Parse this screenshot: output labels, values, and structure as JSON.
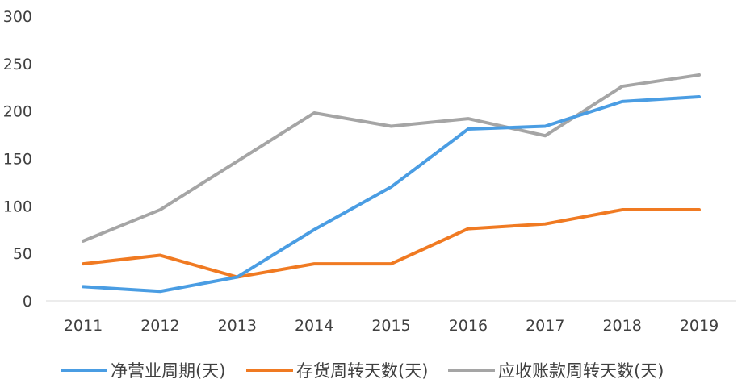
{
  "chart_data": {
    "type": "line",
    "title": "",
    "xlabel": "",
    "ylabel": "",
    "categories": [
      "2011",
      "2012",
      "2013",
      "2014",
      "2015",
      "2016",
      "2017",
      "2018",
      "2019"
    ],
    "ylim": [
      0,
      300
    ],
    "yticks": [
      0,
      50,
      100,
      150,
      200,
      250,
      300
    ],
    "grid": false,
    "legend_position": "bottom",
    "series": [
      {
        "name": "净营业周期(天)",
        "color": "#4a9de3",
        "values": [
          15,
          10,
          25,
          75,
          120,
          181,
          184,
          210,
          215
        ]
      },
      {
        "name": "存货周转天数(天)",
        "color": "#f07a22",
        "values": [
          39,
          48,
          25,
          39,
          39,
          76,
          81,
          96,
          96
        ]
      },
      {
        "name": "应收账款周转天数(天)",
        "color": "#a5a5a5",
        "values": [
          63,
          96,
          147,
          198,
          184,
          192,
          174,
          226,
          238
        ]
      }
    ]
  }
}
